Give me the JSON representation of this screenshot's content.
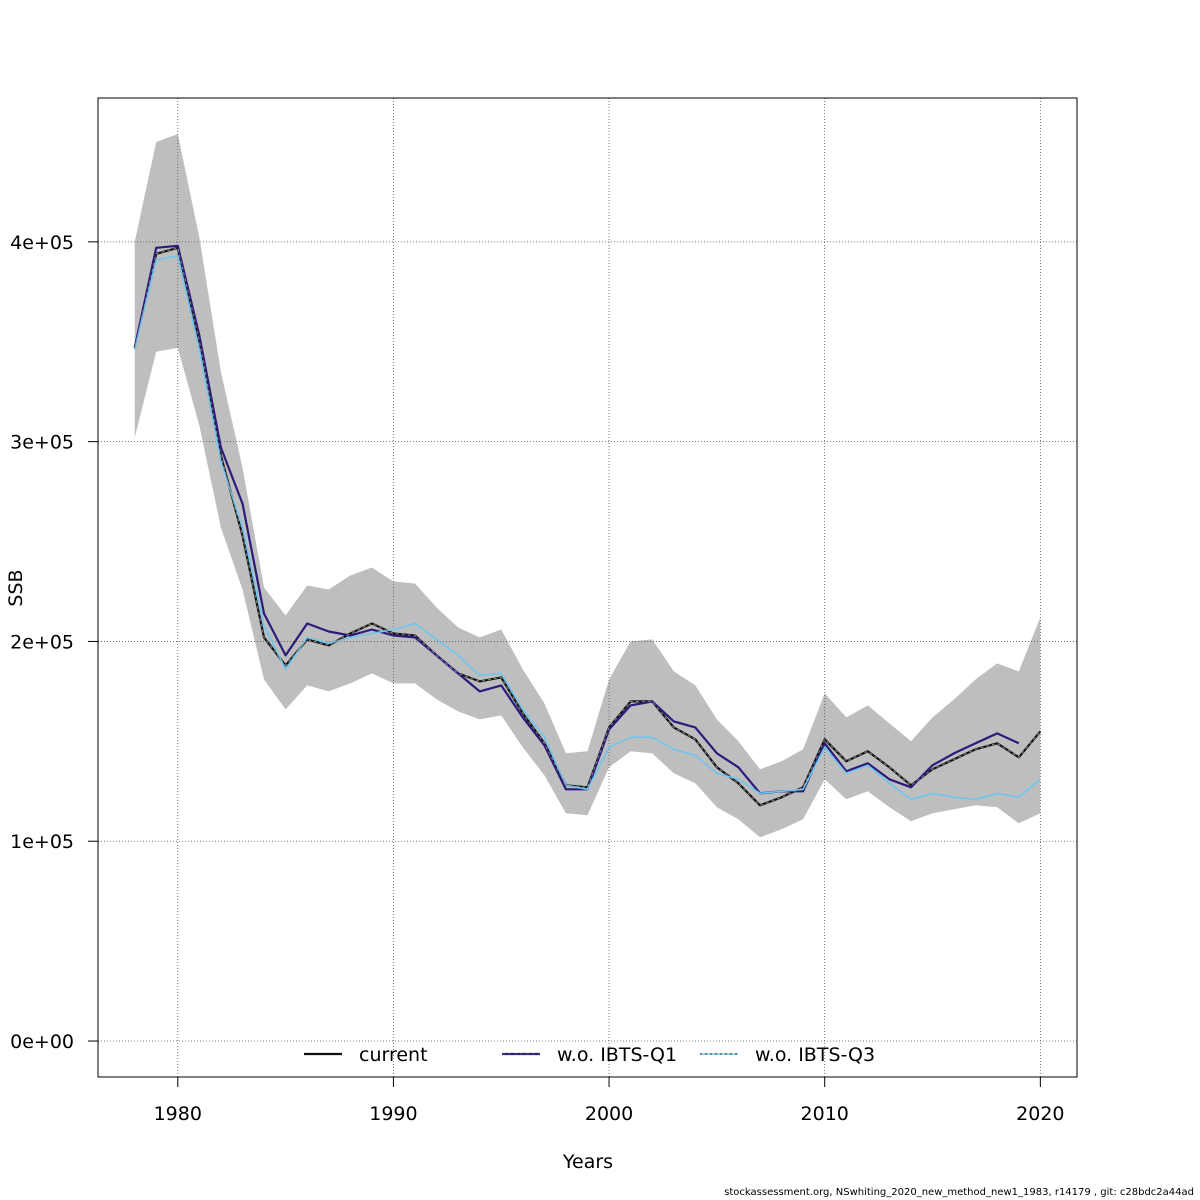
{
  "chart_data": {
    "type": "line",
    "xlabel": "Years",
    "ylabel": "SSB",
    "xlim": [
      1976.3,
      2021.7
    ],
    "ylim": [
      -18000,
      472000
    ],
    "x_ticks": [
      1980,
      1990,
      2000,
      2010,
      2020
    ],
    "x_tick_labels": [
      "1980",
      "1990",
      "2000",
      "2010",
      "2020"
    ],
    "y_ticks": [
      0,
      100000,
      200000,
      300000,
      400000
    ],
    "y_tick_labels": [
      "0e+00",
      "1e+05",
      "2e+05",
      "3e+05",
      "4e+05"
    ],
    "grid": true,
    "legend_position": "bottom",
    "colors": {
      "band": "#bebebe",
      "current": "#000000",
      "q1": "#2e1a7a",
      "q3": "#6ec6f0"
    },
    "years": [
      1978,
      1979,
      1980,
      1981,
      1982,
      1983,
      1984,
      1985,
      1986,
      1987,
      1988,
      1989,
      1990,
      1991,
      1992,
      1993,
      1994,
      1995,
      1996,
      1997,
      1998,
      1999,
      2000,
      2001,
      2002,
      2003,
      2004,
      2005,
      2006,
      2007,
      2008,
      2009,
      2010,
      2011,
      2012,
      2013,
      2014,
      2015,
      2016,
      2017,
      2018,
      2019,
      2020
    ],
    "band_upper": [
      400000,
      450000,
      454000,
      402000,
      335000,
      287000,
      227000,
      213000,
      228000,
      226000,
      233000,
      237000,
      230000,
      229000,
      217000,
      207000,
      202000,
      206000,
      186000,
      169000,
      144000,
      145000,
      181000,
      200000,
      201000,
      185000,
      178000,
      161000,
      150000,
      136000,
      140000,
      146000,
      174000,
      162000,
      168000,
      159000,
      150000,
      162000,
      171000,
      181000,
      189000,
      185000,
      212000
    ],
    "band_lower": [
      302000,
      345000,
      347000,
      308000,
      257000,
      226000,
      181000,
      166000,
      178000,
      175000,
      179000,
      184000,
      179000,
      179000,
      171000,
      165000,
      161000,
      163000,
      147000,
      133000,
      114000,
      113000,
      137000,
      145000,
      144000,
      134000,
      129000,
      117000,
      111000,
      102000,
      106000,
      111000,
      131000,
      121000,
      125000,
      117000,
      110000,
      114000,
      116000,
      118000,
      117000,
      109000,
      114000
    ],
    "series": [
      {
        "name": "current",
        "values": [
          347000,
          394000,
          397000,
          350000,
          293000,
          253000,
          202000,
          188000,
          201000,
          198000,
          204000,
          209000,
          204000,
          203000,
          193000,
          184000,
          180000,
          182000,
          164000,
          149000,
          128000,
          127000,
          157000,
          170000,
          170000,
          157000,
          151000,
          137000,
          129000,
          118000,
          122000,
          127000,
          151000,
          140000,
          145000,
          137000,
          128000,
          136000,
          141000,
          146000,
          149000,
          142000,
          155000
        ]
      },
      {
        "name": "w.o. IBTS-Q1",
        "values": [
          347000,
          397000,
          398000,
          353000,
          297000,
          269000,
          214000,
          193000,
          209000,
          205000,
          203000,
          206000,
          203000,
          202000,
          193000,
          184000,
          175000,
          178000,
          162000,
          148000,
          126000,
          126000,
          156000,
          168000,
          170000,
          160000,
          157000,
          144000,
          137000,
          124000,
          125000,
          125000,
          149000,
          135000,
          139000,
          131000,
          127000,
          138000,
          144000,
          149000,
          154000,
          149000,
          null
        ]
      },
      {
        "name": "w.o. IBTS-Q3",
        "values": [
          346000,
          391000,
          393000,
          346000,
          290000,
          257000,
          208000,
          186000,
          202000,
          199000,
          202000,
          204000,
          206000,
          209000,
          201000,
          193000,
          183000,
          184000,
          166000,
          152000,
          128000,
          126000,
          147000,
          152000,
          152000,
          146000,
          143000,
          134000,
          131000,
          124000,
          125000,
          126000,
          147000,
          134000,
          138000,
          129000,
          121000,
          124000,
          122000,
          121000,
          124000,
          122000,
          131000
        ]
      }
    ]
  },
  "footer_text": "stockassessment.org, NSwhiting_2020_new_method_new1_1983, r14179 , git: c28bdc2a44ad"
}
